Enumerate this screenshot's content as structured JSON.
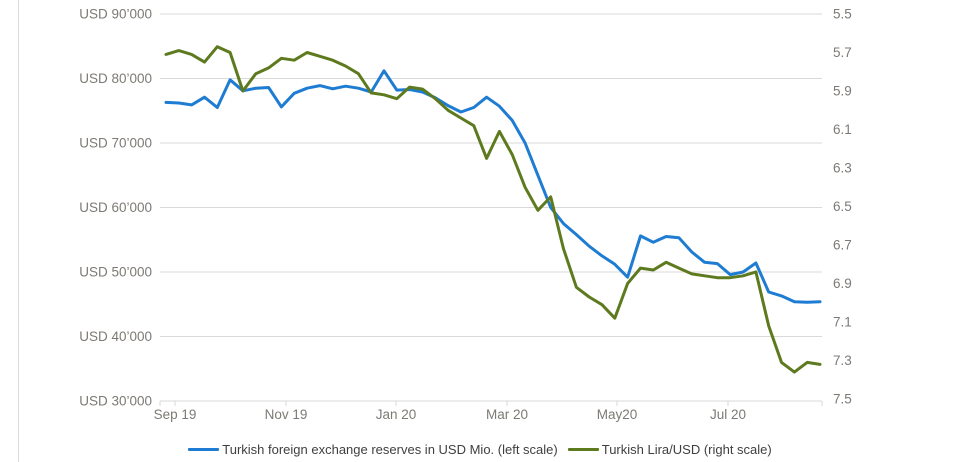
{
  "chart_data": {
    "type": "line",
    "title": "",
    "x_tick_labels": [
      "Sep 19",
      "Nov 19",
      "Jan 20",
      "Mar 20",
      "May20",
      "Jul 20"
    ],
    "left_axis": {
      "tick_labels": [
        "USD 90’000",
        "USD 80’000",
        "USD 70’000",
        "USD 60’000",
        "USD 50’000",
        "USD 40’000",
        "USD 30’000"
      ],
      "min": 30000,
      "max": 90000,
      "unit": "USD Mio."
    },
    "right_axis": {
      "tick_labels": [
        "5.5",
        "5.7",
        "5.9",
        "6.1",
        "6.3",
        "6.5",
        "6.7",
        "6.9",
        "7.1",
        "7.3",
        "7.5"
      ],
      "min": 5.5,
      "max": 7.5,
      "direction": "inverted"
    },
    "grid": "horizontal",
    "legend_position": "bottom-center",
    "series": [
      {
        "name": "Turkish foreign exchange reserves in USD Mio. (left scale)",
        "axis": "left",
        "color": "#1e7cd2",
        "values": [
          76300,
          76200,
          75900,
          77100,
          75500,
          79800,
          78100,
          78500,
          78600,
          75600,
          77700,
          78500,
          78900,
          78400,
          78800,
          78500,
          77900,
          81200,
          78200,
          78300,
          77900,
          77000,
          75800,
          74800,
          75500,
          77100,
          75700,
          73500,
          70000,
          65000,
          60000,
          57500,
          55800,
          54000,
          52500,
          51200,
          49200,
          55600,
          54600,
          55500,
          55300,
          53100,
          51500,
          51300,
          49600,
          50000,
          51400,
          46900,
          46300,
          45400,
          45300,
          45400
        ]
      },
      {
        "name": "Turkish Lira/USD (right scale)",
        "axis": "right",
        "color": "#5e7a1e",
        "values": [
          5.71,
          5.69,
          5.71,
          5.75,
          5.67,
          5.7,
          5.9,
          5.81,
          5.78,
          5.73,
          5.74,
          5.7,
          5.72,
          5.74,
          5.77,
          5.81,
          5.91,
          5.92,
          5.94,
          5.88,
          5.89,
          5.94,
          6.0,
          6.04,
          6.08,
          6.25,
          6.11,
          6.23,
          6.4,
          6.52,
          6.45,
          6.72,
          6.92,
          6.97,
          7.01,
          7.08,
          6.9,
          6.82,
          6.83,
          6.79,
          6.82,
          6.85,
          6.86,
          6.87,
          6.87,
          6.86,
          6.84,
          7.12,
          7.31,
          7.36,
          7.31,
          7.32
        ]
      }
    ]
  },
  "colors": {
    "background": "#ffffff",
    "gridline": "#d9d9d9",
    "axis_text": "#7d7a75",
    "legend_text": "#3f3f3f"
  }
}
